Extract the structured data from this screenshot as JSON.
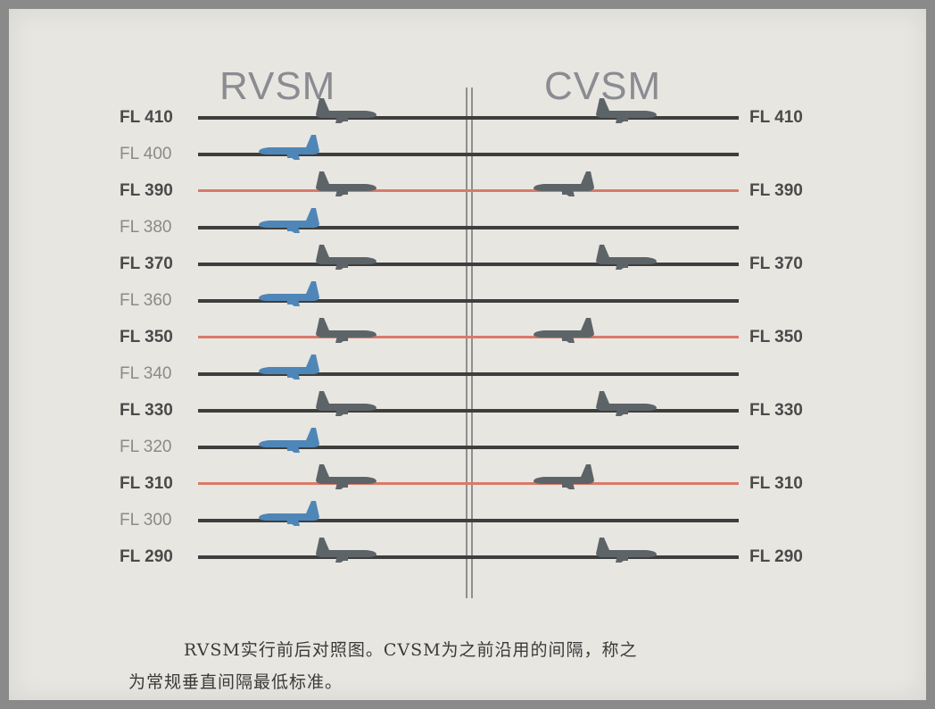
{
  "titles": {
    "left": "RVSM",
    "right": "CVSM"
  },
  "levels": [
    {
      "label": "FL 410",
      "bold": true,
      "red": false,
      "rvsm_plane": "gray",
      "cvsm_plane": "gray-right",
      "right_label": "FL 410"
    },
    {
      "label": "FL 400",
      "bold": false,
      "red": false,
      "rvsm_plane": "blue",
      "cvsm_plane": "",
      "right_label": ""
    },
    {
      "label": "FL 390",
      "bold": true,
      "red": true,
      "rvsm_plane": "gray",
      "cvsm_plane": "gray-left",
      "right_label": "FL 390"
    },
    {
      "label": "FL 380",
      "bold": false,
      "red": false,
      "rvsm_plane": "blue",
      "cvsm_plane": "",
      "right_label": ""
    },
    {
      "label": "FL 370",
      "bold": true,
      "red": false,
      "rvsm_plane": "gray",
      "cvsm_plane": "gray-right",
      "right_label": "FL 370"
    },
    {
      "label": "FL 360",
      "bold": false,
      "red": false,
      "rvsm_plane": "blue",
      "cvsm_plane": "",
      "right_label": ""
    },
    {
      "label": "FL 350",
      "bold": true,
      "red": true,
      "rvsm_plane": "gray",
      "cvsm_plane": "gray-left",
      "right_label": "FL 350"
    },
    {
      "label": "FL 340",
      "bold": false,
      "red": false,
      "rvsm_plane": "blue",
      "cvsm_plane": "",
      "right_label": ""
    },
    {
      "label": "FL 330",
      "bold": true,
      "red": false,
      "rvsm_plane": "gray",
      "cvsm_plane": "gray-right",
      "right_label": "FL 330"
    },
    {
      "label": "FL 320",
      "bold": false,
      "red": false,
      "rvsm_plane": "blue",
      "cvsm_plane": "",
      "right_label": ""
    },
    {
      "label": "FL 310",
      "bold": true,
      "red": true,
      "rvsm_plane": "gray",
      "cvsm_plane": "gray-left",
      "right_label": "FL 310"
    },
    {
      "label": "FL 300",
      "bold": false,
      "red": false,
      "rvsm_plane": "blue",
      "cvsm_plane": "",
      "right_label": ""
    },
    {
      "label": "FL 290",
      "bold": true,
      "red": false,
      "rvsm_plane": "gray",
      "cvsm_plane": "gray-right",
      "right_label": "FL 290"
    }
  ],
  "caption": {
    "line1": "RVSM实行前后对照图。CVSM为之前沿用的间隔，称之",
    "line2": "为常规垂直间隔最低标准。"
  },
  "colors": {
    "line": "#3e3e3e",
    "red_line": "#d97a6a",
    "plane_gray": "#5d6468",
    "plane_blue": "#4f86b8",
    "title": "#8a8c92"
  }
}
